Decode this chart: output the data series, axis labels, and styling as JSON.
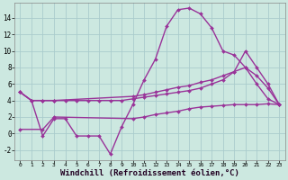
{
  "bg_color": "#cce8e0",
  "grid_color": "#aacccc",
  "line_color": "#993399",
  "line_width": 1.0,
  "marker": "D",
  "marker_size": 2.0,
  "xlabel": "Windchill (Refroidissement éolien,°C)",
  "xlabel_fontsize": 6.5,
  "xlim": [
    -0.5,
    23.5
  ],
  "ylim": [
    -3.2,
    15.8
  ],
  "yticks": [
    -2,
    0,
    2,
    4,
    6,
    8,
    10,
    12,
    14
  ],
  "xticks": [
    0,
    1,
    2,
    3,
    4,
    5,
    6,
    7,
    8,
    9,
    10,
    11,
    12,
    13,
    14,
    15,
    16,
    17,
    18,
    19,
    20,
    21,
    22,
    23
  ],
  "series1_x": [
    0,
    1,
    2,
    3,
    4,
    5,
    6,
    7,
    8,
    9,
    10,
    11,
    12,
    13,
    14,
    15,
    16,
    17,
    18,
    19,
    20,
    21,
    22,
    23
  ],
  "series1_y": [
    5.0,
    4.0,
    -0.3,
    1.8,
    1.8,
    -0.3,
    -0.3,
    -0.3,
    -2.5,
    0.8,
    3.5,
    6.5,
    9.0,
    13.0,
    15.0,
    15.2,
    14.5,
    12.8,
    10.0,
    9.5,
    8.0,
    6.0,
    4.2,
    3.5
  ],
  "series2_x": [
    0,
    1,
    2,
    3,
    4,
    5,
    6,
    7,
    8,
    9,
    10,
    11,
    12,
    13,
    14,
    15,
    16,
    17,
    18,
    19,
    20,
    21,
    22,
    23
  ],
  "series2_y": [
    5.0,
    4.0,
    4.0,
    4.0,
    4.0,
    4.0,
    4.0,
    4.0,
    4.0,
    4.0,
    4.2,
    4.4,
    4.6,
    4.8,
    5.0,
    5.2,
    5.5,
    6.0,
    6.5,
    7.5,
    10.0,
    8.0,
    6.0,
    3.5
  ],
  "series3_x": [
    0,
    1,
    2,
    3,
    10,
    11,
    12,
    13,
    14,
    15,
    16,
    17,
    18,
    19,
    20,
    21,
    22,
    23
  ],
  "series3_y": [
    5.0,
    4.0,
    4.0,
    4.0,
    4.5,
    4.7,
    5.0,
    5.3,
    5.6,
    5.8,
    6.2,
    6.5,
    7.0,
    7.5,
    8.0,
    7.0,
    5.5,
    3.5
  ],
  "series4_x": [
    0,
    2,
    3,
    10,
    11,
    12,
    13,
    14,
    15,
    16,
    17,
    18,
    19,
    20,
    21,
    22,
    23
  ],
  "series4_y": [
    0.5,
    0.5,
    2.0,
    1.8,
    2.0,
    2.3,
    2.5,
    2.7,
    3.0,
    3.2,
    3.3,
    3.4,
    3.5,
    3.5,
    3.5,
    3.6,
    3.5
  ]
}
